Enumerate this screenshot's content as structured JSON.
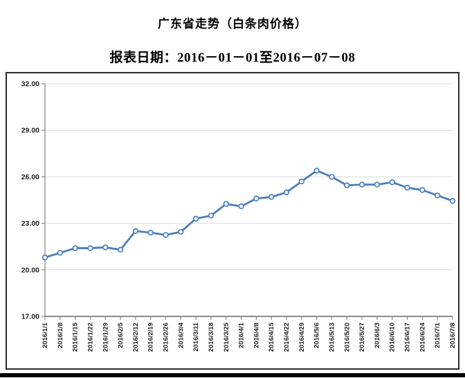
{
  "page": {
    "title": "广东省走势（白条肉价格）",
    "subtitle": "报表日期：2016－01－01至2016－07－08"
  },
  "chart_data": {
    "type": "line",
    "title": "广东省走势（白条肉价格）",
    "subtitle": "报表日期：2016－01－01至2016－07－08",
    "categories": [
      "2016/1/1",
      "2016/1/8",
      "2016/1/15",
      "2016/1/22",
      "2016/1/29",
      "2016/2/5",
      "2016/2/12",
      "2016/2/19",
      "2016/2/26",
      "2016/3/4",
      "2016/3/11",
      "2016/3/18",
      "2016/3/25",
      "2016/4/1",
      "2016/4/8",
      "2016/4/15",
      "2016/4/22",
      "2016/4/29",
      "2016/5/6",
      "2016/5/13",
      "2016/5/20",
      "2016/5/27",
      "2016/6/3",
      "2016/6/10",
      "2016/6/17",
      "2016/6/24",
      "2016/7/1",
      "2016/7/8"
    ],
    "series": [
      {
        "name": "白条肉价格",
        "values": [
          20.8,
          21.1,
          21.4,
          21.4,
          21.45,
          21.3,
          22.5,
          22.4,
          22.25,
          22.45,
          23.3,
          23.5,
          24.25,
          24.1,
          24.6,
          24.7,
          25.0,
          25.7,
          26.4,
          26.0,
          25.45,
          25.5,
          25.5,
          25.65,
          25.3,
          25.15,
          24.8,
          24.45
        ]
      }
    ],
    "xlabel": "",
    "ylabel": "",
    "ylim": [
      17,
      32
    ],
    "ytick_step": 3,
    "ytick_labels": [
      "32.00",
      "29.00",
      "26.00",
      "23.00",
      "20.00",
      "17.00"
    ],
    "grid": true,
    "legend_position": "none",
    "colors": {
      "line": "#4a7ebb",
      "marker_fill": "#e9f1fb",
      "grid": "#d9d9d9",
      "axis": "#8c8c8c",
      "tick_label": "#1f1f1f"
    }
  }
}
